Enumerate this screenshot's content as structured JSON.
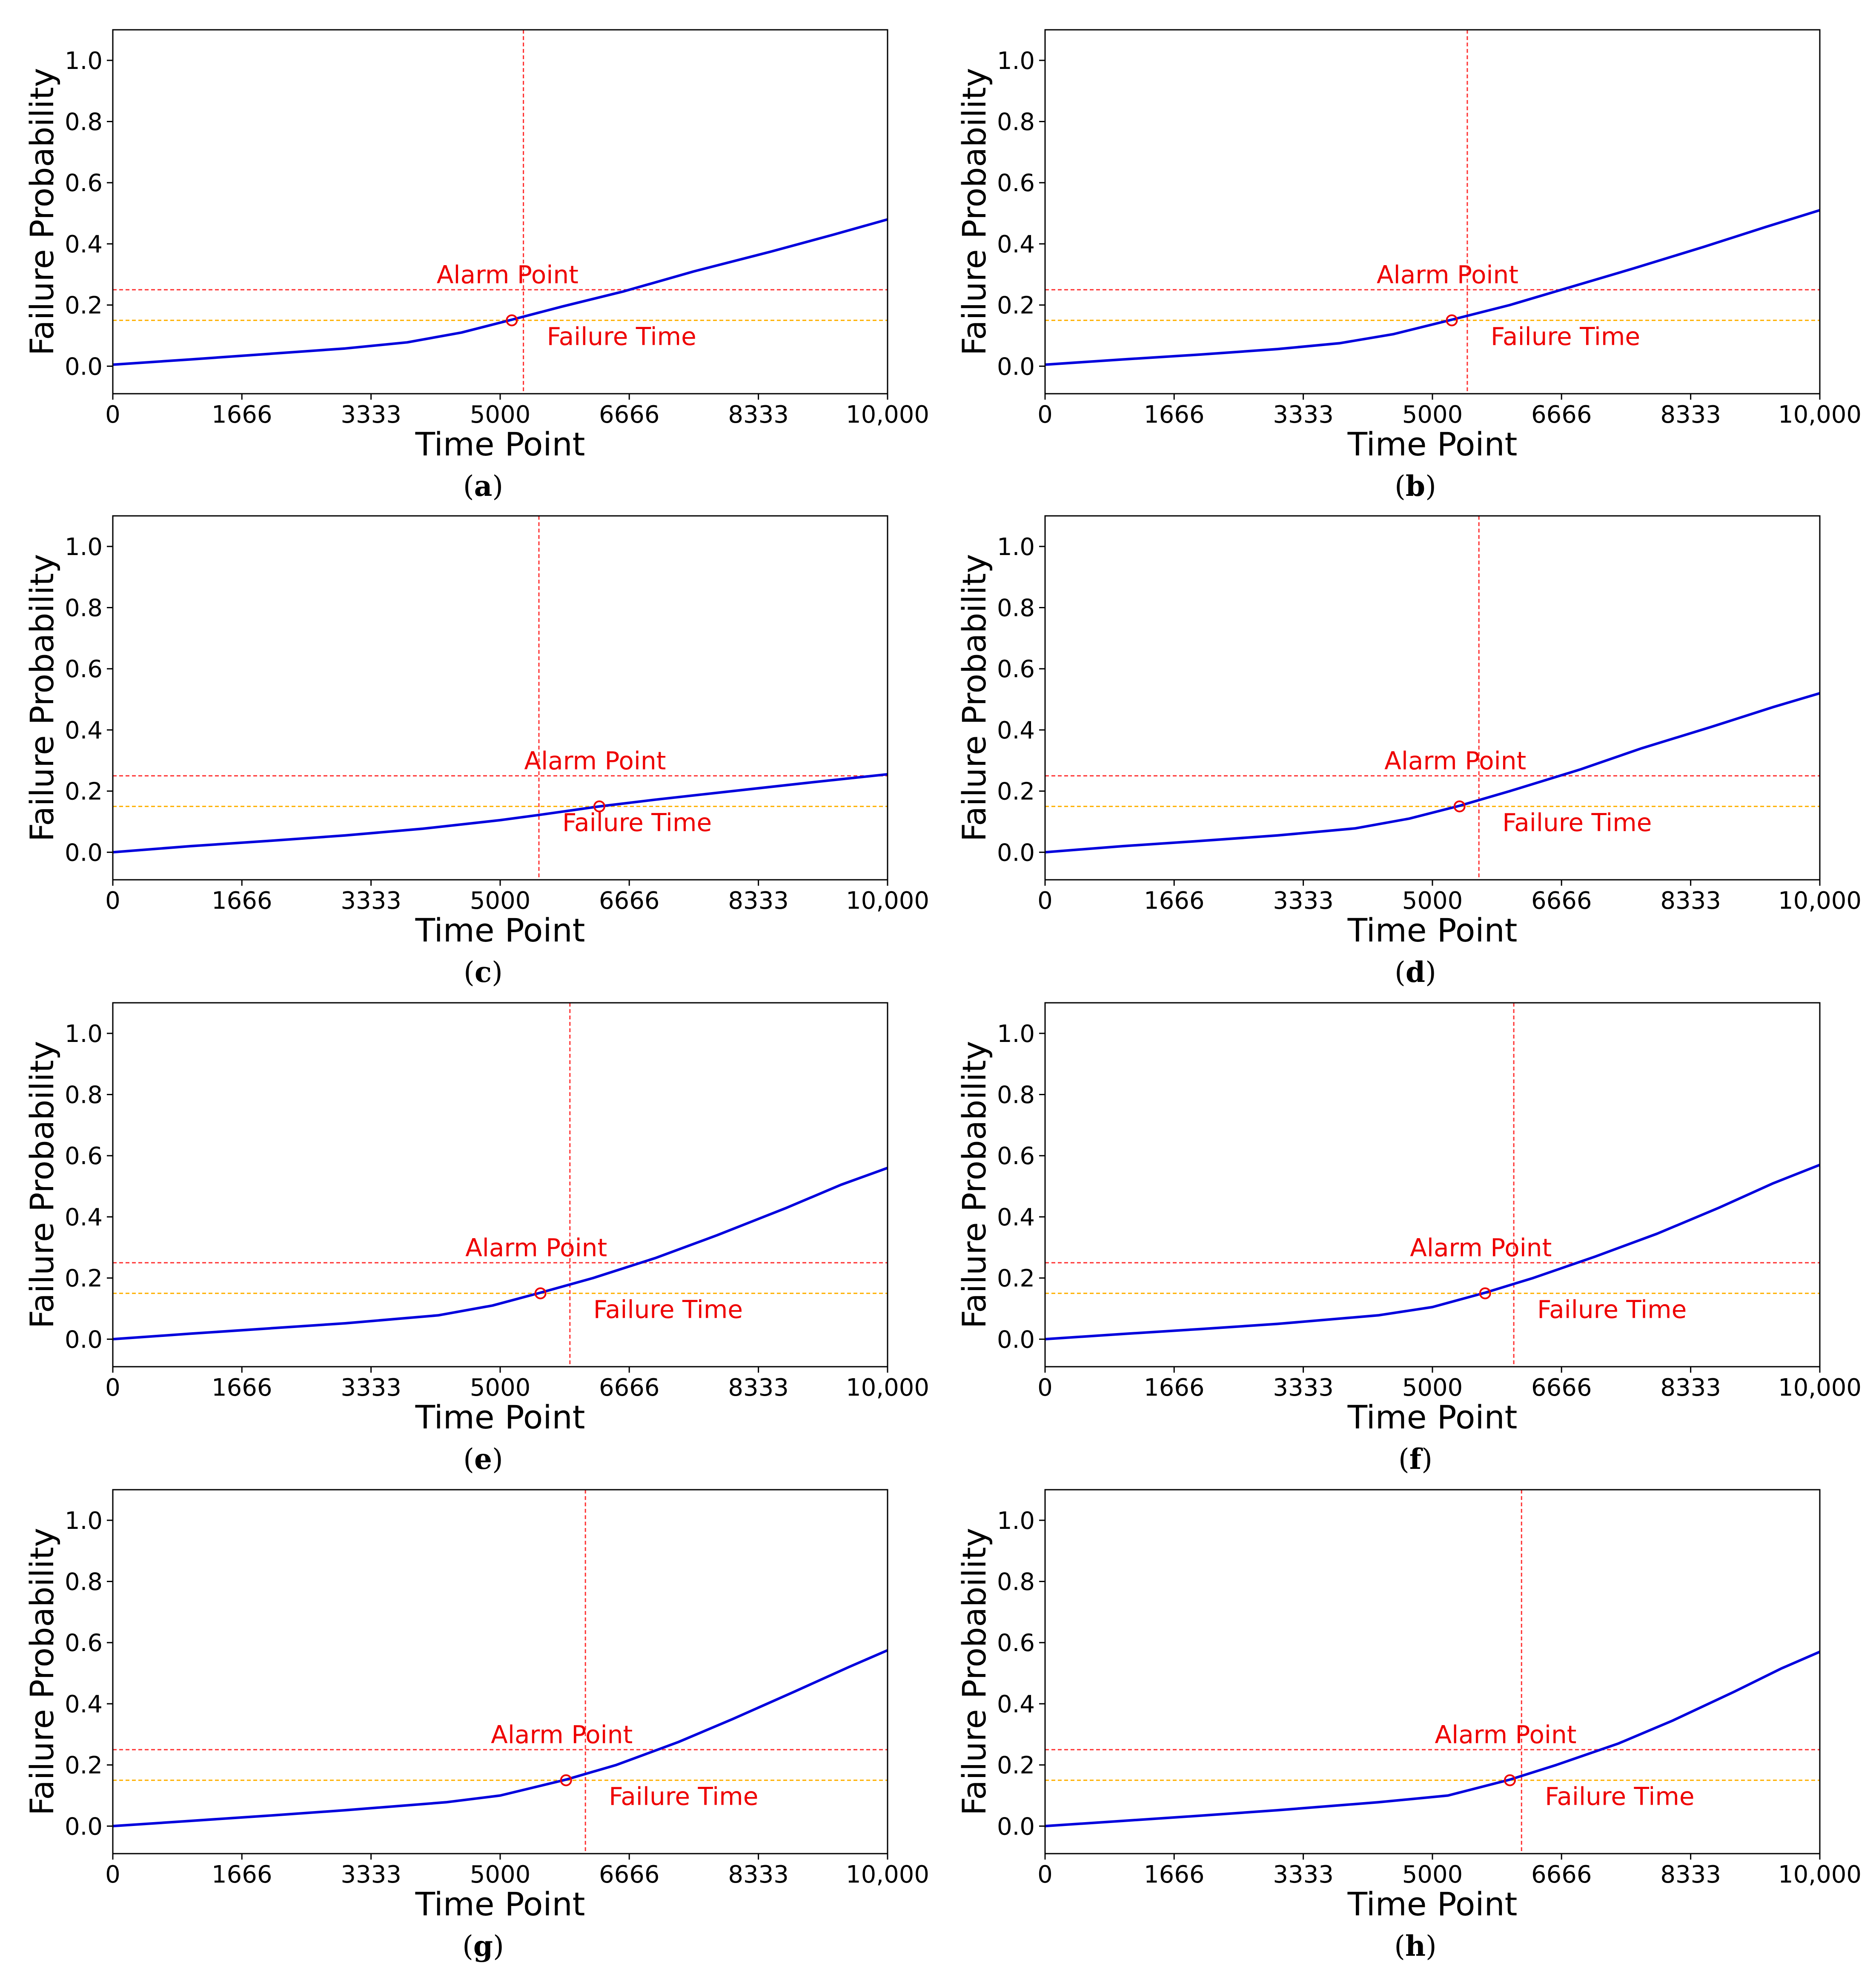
{
  "figure": {
    "colors": {
      "curve": "#0000dd",
      "alarm_line": "#ff3333",
      "failure_threshold": "#ffb000",
      "marker": "#ee0000",
      "annotation": "#ee0000"
    }
  },
  "chart_data": [
    {
      "panel": "a",
      "caption": "a",
      "type": "line",
      "xlabel": "Time Point",
      "ylabel": "Failure Probability",
      "xlim": [
        0,
        10000
      ],
      "ylim": [
        -0.09,
        1.1
      ],
      "xticks": [
        0,
        1666,
        3333,
        5000,
        6666,
        8333,
        10000
      ],
      "xtick_labels": [
        "0",
        "1666",
        "3333",
        "5000",
        "6666",
        "8333",
        "10,000"
      ],
      "yticks": [
        0.0,
        0.2,
        0.4,
        0.6,
        0.8,
        1.0
      ],
      "ytick_labels": [
        "0.0",
        "0.2",
        "0.4",
        "0.6",
        "0.8",
        "1.0"
      ],
      "alarm_level": 0.25,
      "failure_threshold": 0.15,
      "failure_time": 5300,
      "alarm_point": {
        "x": 5150,
        "y": 0.15
      },
      "annotations": {
        "alarm": "Alarm Point",
        "failure": "Failure Time"
      },
      "series": [
        {
          "name": "Failure Probability",
          "x": [
            0,
            1000,
            2000,
            3000,
            3800,
            4500,
            5150,
            5800,
            6600,
            7500,
            8500,
            9300,
            10000
          ],
          "y": [
            0.005,
            0.022,
            0.04,
            0.058,
            0.078,
            0.11,
            0.152,
            0.195,
            0.245,
            0.31,
            0.375,
            0.43,
            0.48
          ]
        }
      ]
    },
    {
      "panel": "b",
      "caption": "b",
      "type": "line",
      "xlabel": "Time Point",
      "ylabel": "Failure Probability",
      "xlim": [
        0,
        10000
      ],
      "ylim": [
        -0.09,
        1.1
      ],
      "xticks": [
        0,
        1666,
        3333,
        5000,
        6666,
        8333,
        10000
      ],
      "xtick_labels": [
        "0",
        "1666",
        "3333",
        "5000",
        "6666",
        "8333",
        "10,000"
      ],
      "yticks": [
        0.0,
        0.2,
        0.4,
        0.6,
        0.8,
        1.0
      ],
      "ytick_labels": [
        "0.0",
        "0.2",
        "0.4",
        "0.6",
        "0.8",
        "1.0"
      ],
      "alarm_level": 0.25,
      "failure_threshold": 0.15,
      "failure_time": 5450,
      "alarm_point": {
        "x": 5250,
        "y": 0.15
      },
      "annotations": {
        "alarm": "Alarm Point",
        "failure": "Failure Time"
      },
      "series": [
        {
          "name": "Failure Probability",
          "x": [
            0,
            1000,
            2000,
            3000,
            3800,
            4500,
            5250,
            6000,
            6800,
            7600,
            8500,
            9300,
            10000
          ],
          "y": [
            0.005,
            0.022,
            0.038,
            0.056,
            0.075,
            0.105,
            0.152,
            0.2,
            0.26,
            0.32,
            0.39,
            0.455,
            0.51
          ]
        }
      ]
    },
    {
      "panel": "c",
      "caption": "c",
      "type": "line",
      "xlabel": "Time Point",
      "ylabel": "Failure Probability",
      "xlim": [
        0,
        10000
      ],
      "ylim": [
        -0.09,
        1.1
      ],
      "xticks": [
        0,
        1666,
        3333,
        5000,
        6666,
        8333,
        10000
      ],
      "xtick_labels": [
        "0",
        "1666",
        "3333",
        "5000",
        "6666",
        "8333",
        "10,000"
      ],
      "yticks": [
        0.0,
        0.2,
        0.4,
        0.6,
        0.8,
        1.0
      ],
      "ytick_labels": [
        "0.0",
        "0.2",
        "0.4",
        "0.6",
        "0.8",
        "1.0"
      ],
      "alarm_level": 0.25,
      "failure_threshold": 0.15,
      "failure_time": 5500,
      "alarm_point": {
        "x": 6280,
        "y": 0.15
      },
      "annotations": {
        "alarm": "Alarm Point",
        "failure": "Failure Time"
      },
      "series": [
        {
          "name": "Failure Probability",
          "x": [
            0,
            1000,
            2000,
            3000,
            4000,
            5000,
            5500,
            6280,
            7000,
            8000,
            9000,
            10000
          ],
          "y": [
            0.0,
            0.02,
            0.037,
            0.055,
            0.077,
            0.105,
            0.122,
            0.15,
            0.172,
            0.2,
            0.228,
            0.255
          ]
        }
      ]
    },
    {
      "panel": "d",
      "caption": "d",
      "type": "line",
      "xlabel": "Time Point",
      "ylabel": "Failure Probability",
      "xlim": [
        0,
        10000
      ],
      "ylim": [
        -0.09,
        1.1
      ],
      "xticks": [
        0,
        1666,
        3333,
        5000,
        6666,
        8333,
        10000
      ],
      "xtick_labels": [
        "0",
        "1666",
        "3333",
        "5000",
        "6666",
        "8333",
        "10,000"
      ],
      "yticks": [
        0.0,
        0.2,
        0.4,
        0.6,
        0.8,
        1.0
      ],
      "ytick_labels": [
        "0.0",
        "0.2",
        "0.4",
        "0.6",
        "0.8",
        "1.0"
      ],
      "alarm_level": 0.25,
      "failure_threshold": 0.15,
      "failure_time": 5600,
      "alarm_point": {
        "x": 5350,
        "y": 0.15
      },
      "annotations": {
        "alarm": "Alarm Point",
        "failure": "Failure Time"
      },
      "series": [
        {
          "name": "Failure Probability",
          "x": [
            0,
            1000,
            2000,
            3000,
            4000,
            4700,
            5350,
            6000,
            6900,
            7700,
            8600,
            9400,
            10000
          ],
          "y": [
            0.0,
            0.02,
            0.037,
            0.055,
            0.078,
            0.11,
            0.152,
            0.2,
            0.27,
            0.34,
            0.41,
            0.475,
            0.52
          ]
        }
      ]
    },
    {
      "panel": "e",
      "caption": "e",
      "type": "line",
      "xlabel": "Time Point",
      "ylabel": "Failure Probability",
      "xlim": [
        0,
        10000
      ],
      "ylim": [
        -0.09,
        1.1
      ],
      "xticks": [
        0,
        1666,
        3333,
        5000,
        6666,
        8333,
        10000
      ],
      "xtick_labels": [
        "0",
        "1666",
        "3333",
        "5000",
        "6666",
        "8333",
        "10,000"
      ],
      "yticks": [
        0.0,
        0.2,
        0.4,
        0.6,
        0.8,
        1.0
      ],
      "ytick_labels": [
        "0.0",
        "0.2",
        "0.4",
        "0.6",
        "0.8",
        "1.0"
      ],
      "alarm_level": 0.25,
      "failure_threshold": 0.15,
      "failure_time": 5900,
      "alarm_point": {
        "x": 5520,
        "y": 0.15
      },
      "annotations": {
        "alarm": "Alarm Point",
        "failure": "Failure Time"
      },
      "series": [
        {
          "name": "Failure Probability",
          "x": [
            0,
            1000,
            2000,
            3000,
            4200,
            4900,
            5520,
            6200,
            7000,
            7800,
            8700,
            9400,
            10000
          ],
          "y": [
            0.0,
            0.018,
            0.035,
            0.052,
            0.078,
            0.11,
            0.152,
            0.2,
            0.265,
            0.34,
            0.43,
            0.505,
            0.56
          ]
        }
      ]
    },
    {
      "panel": "f",
      "caption": "f",
      "type": "line",
      "xlabel": "Time Point",
      "ylabel": "Failure Probability",
      "xlim": [
        0,
        10000
      ],
      "ylim": [
        -0.09,
        1.1
      ],
      "xticks": [
        0,
        1666,
        3333,
        5000,
        6666,
        8333,
        10000
      ],
      "xtick_labels": [
        "0",
        "1666",
        "3333",
        "5000",
        "6666",
        "8333",
        "10,000"
      ],
      "yticks": [
        0.0,
        0.2,
        0.4,
        0.6,
        0.8,
        1.0
      ],
      "ytick_labels": [
        "0.0",
        "0.2",
        "0.4",
        "0.6",
        "0.8",
        "1.0"
      ],
      "alarm_level": 0.25,
      "failure_threshold": 0.15,
      "failure_time": 6050,
      "alarm_point": {
        "x": 5680,
        "y": 0.15
      },
      "annotations": {
        "alarm": "Alarm Point",
        "failure": "Failure Time"
      },
      "series": [
        {
          "name": "Failure Probability",
          "x": [
            0,
            1000,
            2000,
            3000,
            4300,
            5000,
            5680,
            6300,
            7100,
            7900,
            8700,
            9400,
            10000
          ],
          "y": [
            0.0,
            0.017,
            0.033,
            0.05,
            0.078,
            0.105,
            0.152,
            0.2,
            0.27,
            0.345,
            0.43,
            0.51,
            0.57
          ]
        }
      ]
    },
    {
      "panel": "g",
      "caption": "g",
      "type": "line",
      "xlabel": "Time Point",
      "ylabel": "Failure Probability",
      "xlim": [
        0,
        10000
      ],
      "ylim": [
        -0.09,
        1.1
      ],
      "xticks": [
        0,
        1666,
        3333,
        5000,
        6666,
        8333,
        10000
      ],
      "xtick_labels": [
        "0",
        "1666",
        "3333",
        "5000",
        "6666",
        "8333",
        "10,000"
      ],
      "yticks": [
        0.0,
        0.2,
        0.4,
        0.6,
        0.8,
        1.0
      ],
      "ytick_labels": [
        "0.0",
        "0.2",
        "0.4",
        "0.6",
        "0.8",
        "1.0"
      ],
      "alarm_level": 0.25,
      "failure_threshold": 0.15,
      "failure_time": 6100,
      "alarm_point": {
        "x": 5850,
        "y": 0.15
      },
      "annotations": {
        "alarm": "Alarm Point",
        "failure": "Failure Time"
      },
      "series": [
        {
          "name": "Failure Probability",
          "x": [
            0,
            1000,
            2000,
            3000,
            4300,
            5000,
            5850,
            6500,
            7300,
            8000,
            8800,
            9500,
            10000
          ],
          "y": [
            0.0,
            0.017,
            0.034,
            0.052,
            0.078,
            0.1,
            0.152,
            0.2,
            0.275,
            0.35,
            0.44,
            0.52,
            0.575
          ]
        }
      ]
    },
    {
      "panel": "h",
      "caption": "h",
      "type": "line",
      "xlabel": "Time Point",
      "ylabel": "Failure Probability",
      "xlim": [
        0,
        10000
      ],
      "ylim": [
        -0.09,
        1.1
      ],
      "xticks": [
        0,
        1666,
        3333,
        5000,
        6666,
        8333,
        10000
      ],
      "xtick_labels": [
        "0",
        "1666",
        "3333",
        "5000",
        "6666",
        "8333",
        "10,000"
      ],
      "yticks": [
        0.0,
        0.2,
        0.4,
        0.6,
        0.8,
        1.0
      ],
      "ytick_labels": [
        "0.0",
        "0.2",
        "0.4",
        "0.6",
        "0.8",
        "1.0"
      ],
      "alarm_level": 0.25,
      "failure_threshold": 0.15,
      "failure_time": 6150,
      "alarm_point": {
        "x": 6000,
        "y": 0.15
      },
      "annotations": {
        "alarm": "Alarm Point",
        "failure": "Failure Time"
      },
      "series": [
        {
          "name": "Failure Probability",
          "x": [
            0,
            1000,
            2000,
            3000,
            4300,
            5200,
            6000,
            6600,
            7400,
            8100,
            8900,
            9500,
            10000
          ],
          "y": [
            0.0,
            0.017,
            0.034,
            0.052,
            0.078,
            0.1,
            0.152,
            0.2,
            0.27,
            0.345,
            0.44,
            0.515,
            0.57
          ]
        }
      ]
    }
  ]
}
